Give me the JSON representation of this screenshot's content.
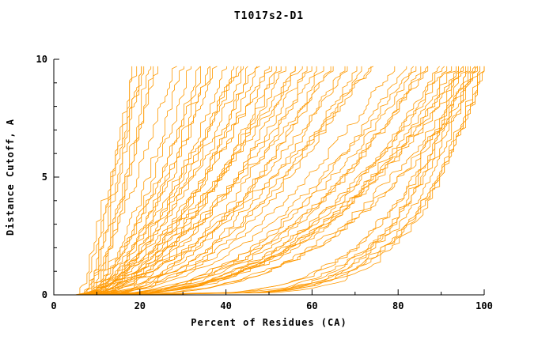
{
  "window_title": "T1017s2-D1",
  "chart_data": {
    "type": "line",
    "title": "T1017s2-D1",
    "xlabel": "Percent of Residues (CA)",
    "ylabel": "Distance Cutoff, A",
    "xlim": [
      0,
      100
    ],
    "ylim": [
      0,
      10
    ],
    "x_major_ticks": [
      0,
      20,
      40,
      60,
      80,
      100
    ],
    "x_major_tick_labels": [
      "0",
      "20",
      "40",
      "60",
      "80",
      "100"
    ],
    "x_minor_ticks": [
      10,
      30,
      50,
      70,
      90
    ],
    "y_major_ticks": [
      0,
      5,
      10
    ],
    "y_major_tick_labels": [
      "0",
      "5",
      "10"
    ],
    "y_minor_ticks": [
      1,
      2,
      3,
      4,
      6,
      7,
      8,
      9
    ],
    "grid": false,
    "legend": "none",
    "line_color": "#FF9900",
    "axis_color": "#000000",
    "ymax_plotted": 9.7,
    "series_format": [
      "x_at_cutoff_0",
      "x_at_cutoff_10",
      "shape_exponent",
      "seed"
    ],
    "series": [
      [
        7,
        19,
        1.0,
        1
      ],
      [
        8,
        20,
        1.1,
        2
      ],
      [
        6,
        21,
        0.9,
        3
      ],
      [
        9,
        22,
        1.2,
        4
      ],
      [
        8,
        18,
        1.0,
        5
      ],
      [
        10,
        23,
        1.1,
        6
      ],
      [
        7,
        20,
        1.3,
        7
      ],
      [
        9,
        24,
        1.0,
        8
      ],
      [
        6,
        28,
        1.3,
        9
      ],
      [
        7,
        30,
        1.5,
        10
      ],
      [
        8,
        32,
        1.4,
        11
      ],
      [
        6,
        34,
        1.6,
        12
      ],
      [
        9,
        35,
        1.3,
        13
      ],
      [
        7,
        37,
        1.7,
        14
      ],
      [
        8,
        38,
        1.4,
        15
      ],
      [
        10,
        40,
        1.5,
        16
      ],
      [
        6,
        42,
        1.8,
        17
      ],
      [
        9,
        43,
        1.4,
        18
      ],
      [
        7,
        45,
        1.6,
        19
      ],
      [
        8,
        46,
        1.9,
        20
      ],
      [
        11,
        48,
        1.5,
        21
      ],
      [
        6,
        50,
        1.7,
        22
      ],
      [
        9,
        51,
        1.4,
        23
      ],
      [
        7,
        53,
        1.8,
        24
      ],
      [
        10,
        54,
        1.6,
        25
      ],
      [
        8,
        56,
        2.0,
        26
      ],
      [
        6,
        57,
        1.5,
        27
      ],
      [
        9,
        59,
        1.7,
        28
      ],
      [
        11,
        60,
        1.9,
        29
      ],
      [
        7,
        62,
        1.6,
        30
      ],
      [
        8,
        63,
        2.1,
        31
      ],
      [
        10,
        65,
        1.8,
        32
      ],
      [
        6,
        66,
        1.5,
        33
      ],
      [
        9,
        68,
        2.0,
        34
      ],
      [
        7,
        69,
        1.7,
        35
      ],
      [
        12,
        71,
        1.9,
        36
      ],
      [
        8,
        72,
        2.2,
        37
      ],
      [
        10,
        74,
        1.8,
        38
      ],
      [
        6,
        75,
        1.6,
        39
      ],
      [
        9,
        58,
        1.4,
        40
      ],
      [
        7,
        47,
        1.5,
        41
      ],
      [
        11,
        52,
        1.7,
        42
      ],
      [
        8,
        44,
        1.3,
        43
      ],
      [
        10,
        36,
        1.4,
        44
      ],
      [
        8,
        80,
        2.0,
        45
      ],
      [
        10,
        82,
        2.3,
        46
      ],
      [
        7,
        84,
        2.1,
        47
      ],
      [
        9,
        86,
        2.5,
        48
      ],
      [
        11,
        88,
        2.2,
        49
      ],
      [
        8,
        90,
        2.6,
        50
      ],
      [
        10,
        92,
        2.4,
        51
      ],
      [
        7,
        94,
        2.8,
        52
      ],
      [
        9,
        96,
        2.5,
        53
      ],
      [
        12,
        98,
        2.7,
        54
      ],
      [
        8,
        100,
        2.9,
        55
      ],
      [
        10,
        85,
        2.2,
        56
      ],
      [
        9,
        91,
        2.6,
        57
      ],
      [
        11,
        95,
        2.4,
        58
      ],
      [
        7,
        99,
        3.0,
        59
      ],
      [
        10,
        87,
        2.3,
        60
      ],
      [
        8,
        93,
        2.7,
        61
      ],
      [
        9,
        97,
        2.5,
        62
      ],
      [
        12,
        95,
        4.5,
        63
      ],
      [
        14,
        98,
        5.0,
        64
      ],
      [
        10,
        100,
        5.5,
        65
      ],
      [
        15,
        97,
        4.0,
        66
      ],
      [
        12,
        99,
        6.0,
        67
      ],
      [
        16,
        96,
        4.8,
        68
      ],
      [
        13,
        100,
        5.2,
        69
      ],
      [
        18,
        98,
        4.2,
        70
      ],
      [
        11,
        94,
        5.8,
        71
      ],
      [
        20,
        100,
        4.6,
        72
      ]
    ]
  }
}
